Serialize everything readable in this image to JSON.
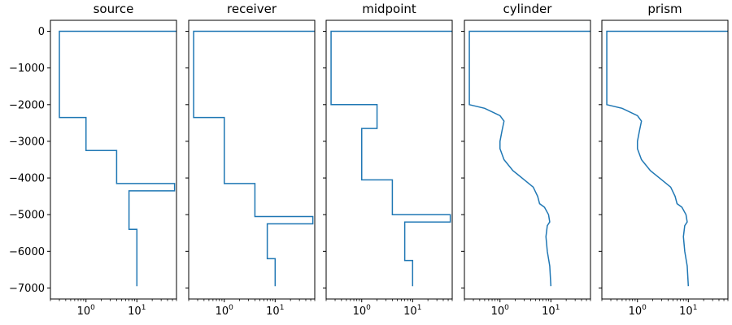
{
  "chart_data": {
    "type": "line",
    "layout": "five side-by-side panels sharing the y axis; x axis logarithmic",
    "xscale": "log",
    "xlim": [
      0.2,
      60
    ],
    "ylim": [
      -7300,
      300
    ],
    "yticks": [
      0,
      -1000,
      -2000,
      -3000,
      -4000,
      -5000,
      -6000,
      -7000
    ],
    "ytick_labels": [
      "0",
      "−1000",
      "−2000",
      "−3000",
      "−4000",
      "−5000",
      "−6000",
      "−7000"
    ],
    "xticks": [
      1,
      10
    ],
    "xtick_labels": [
      {
        "base": "10",
        "exp": "0"
      },
      {
        "base": "10",
        "exp": "1"
      }
    ],
    "grid": false,
    "line_color": "#1f77b4",
    "panels": [
      {
        "title": "source",
        "style": "steps",
        "x": [
          60,
          0.3,
          0.3,
          1.0,
          1.0,
          4.0,
          4.0,
          55,
          55,
          7.0,
          7.0,
          10.0,
          10.0
        ],
        "y": [
          0,
          0,
          -2350,
          -2350,
          -3250,
          -3250,
          -4150,
          -4150,
          -4350,
          -4350,
          -5400,
          -5400,
          -6950
        ]
      },
      {
        "title": "receiver",
        "style": "steps",
        "x": [
          60,
          0.25,
          0.25,
          1.0,
          1.0,
          4.0,
          4.0,
          55,
          55,
          7.0,
          7.0,
          10.0,
          10.0
        ],
        "y": [
          0,
          0,
          -2350,
          -2350,
          -4150,
          -4150,
          -5050,
          -5050,
          -5250,
          -5250,
          -6200,
          -6200,
          -6950
        ]
      },
      {
        "title": "midpoint",
        "style": "steps",
        "x": [
          60,
          0.25,
          0.25,
          2.0,
          2.0,
          1.0,
          1.0,
          4.0,
          4.0,
          55,
          55,
          7.0,
          7.0,
          10.0,
          10.0
        ],
        "y": [
          0,
          0,
          -2000,
          -2000,
          -2650,
          -2650,
          -4050,
          -4050,
          -5000,
          -5000,
          -5200,
          -5200,
          -6250,
          -6250,
          -6950
        ]
      },
      {
        "title": "cylinder",
        "style": "fine-steps",
        "x": [
          60,
          0.25,
          0.25,
          0.5,
          1.0,
          1.2,
          1.1,
          1.0,
          1.0,
          1.2,
          1.8,
          3.0,
          4.5,
          5.5,
          6.0,
          7.5,
          9.0,
          9.5,
          8.5,
          8.0,
          8.5,
          9.5,
          10.0
        ],
        "y": [
          0,
          0,
          -2000,
          -2100,
          -2300,
          -2450,
          -2700,
          -3000,
          -3200,
          -3500,
          -3800,
          -4050,
          -4250,
          -4500,
          -4700,
          -4800,
          -5000,
          -5200,
          -5300,
          -5600,
          -6000,
          -6400,
          -6950
        ]
      },
      {
        "title": "prism",
        "style": "fine-steps",
        "x": [
          60,
          0.25,
          0.25,
          0.5,
          1.0,
          1.2,
          1.1,
          1.0,
          1.0,
          1.2,
          1.8,
          3.0,
          4.5,
          5.5,
          6.0,
          7.5,
          9.0,
          9.5,
          8.5,
          8.0,
          8.5,
          9.5,
          10.0
        ],
        "y": [
          0,
          0,
          -2000,
          -2100,
          -2300,
          -2450,
          -2700,
          -3000,
          -3200,
          -3500,
          -3800,
          -4050,
          -4250,
          -4500,
          -4700,
          -4800,
          -5000,
          -5200,
          -5300,
          -5600,
          -6000,
          -6400,
          -6950
        ]
      }
    ]
  }
}
